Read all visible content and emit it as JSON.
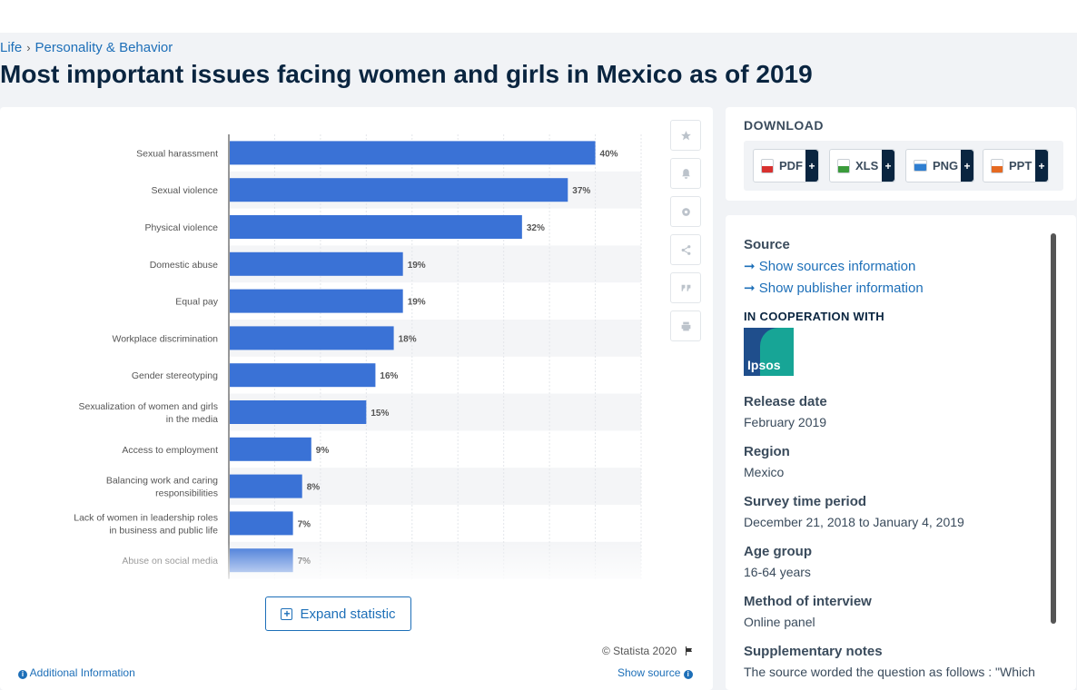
{
  "breadcrumb": {
    "items": [
      "Life",
      "Personality & Behavior"
    ],
    "sep": "›"
  },
  "page_title": "Most important issues facing women and girls in Mexico as of 2019",
  "chart_data": {
    "type": "bar",
    "orientation": "horizontal",
    "categories": [
      "Sexual harassment",
      "Sexual violence",
      "Physical violence",
      "Domestic abuse",
      "Equal pay",
      "Workplace discrimination",
      "Gender stereotyping",
      "Sexualization of women and girls in the media",
      "Access to employment",
      "Balancing work and caring responsibilities",
      "Lack of women in leadership roles in business and public life",
      "Abuse on social media"
    ],
    "values": [
      40,
      37,
      32,
      19,
      19,
      18,
      16,
      15,
      9,
      8,
      7,
      7
    ],
    "value_labels": [
      "40%",
      "37%",
      "32%",
      "19%",
      "19%",
      "18%",
      "16%",
      "15%",
      "9%",
      "8%",
      "7%",
      "7%"
    ],
    "unit": "%",
    "xlim": [
      0,
      45
    ],
    "grid": true,
    "bar_color": "#3a72d6"
  },
  "tools": [
    "star-icon",
    "bell-icon",
    "gear-icon",
    "share-icon",
    "quote-icon",
    "print-icon"
  ],
  "expand_label": "Expand statistic",
  "copyright": "© Statista 2020",
  "additional_info": "Additional Information",
  "show_source": "Show source",
  "download": {
    "title": "DOWNLOAD",
    "formats": [
      {
        "label": "PDF",
        "color": "#d8312f"
      },
      {
        "label": "XLS",
        "color": "#3b9b3b"
      },
      {
        "label": "PNG",
        "color": "#2f7fd1"
      },
      {
        "label": "PPT",
        "color": "#e56a22"
      }
    ],
    "plus": "+"
  },
  "source_panel": {
    "source_title": "Source",
    "show_sources": "Show sources information",
    "show_publisher": "Show publisher information",
    "coop_title": "IN COOPERATION WITH",
    "coop_logo_text": "Ipsos",
    "release_date_title": "Release date",
    "release_date": "February 2019",
    "region_title": "Region",
    "region": "Mexico",
    "survey_period_title": "Survey time period",
    "survey_period": "December 21, 2018 to January 4, 2019",
    "age_group_title": "Age group",
    "age_group": "16-64 years",
    "method_title": "Method of interview",
    "method": "Online panel",
    "notes_title": "Supplementary notes",
    "notes": "The source worded the question as follows : \"Which"
  }
}
